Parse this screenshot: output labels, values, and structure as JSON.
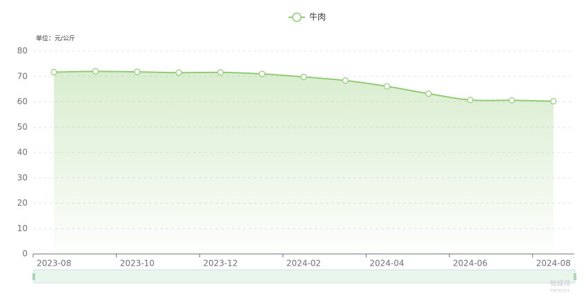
{
  "chart_data": {
    "type": "line",
    "legend": "牛肉",
    "unit_label": "单位：元/公斤",
    "watermark": [
      "钛媒体",
      "TMTPOST"
    ],
    "categories": [
      "2023-08",
      null,
      "2023-10",
      null,
      "2023-12",
      null,
      "2024-02",
      null,
      "2024-04",
      null,
      "2024-06",
      null,
      "2024-08"
    ],
    "series": [
      {
        "name": "牛肉",
        "color": "#91cc75",
        "values": [
          71.7,
          72.0,
          71.8,
          71.5,
          71.6,
          71.0,
          69.8,
          68.4,
          66.1,
          63.2,
          60.7,
          60.6,
          60.2
        ]
      }
    ],
    "ylim": [
      0,
      80
    ],
    "yticks": [
      0,
      10,
      20,
      30,
      40,
      50,
      60,
      70,
      80
    ],
    "grid": true
  }
}
